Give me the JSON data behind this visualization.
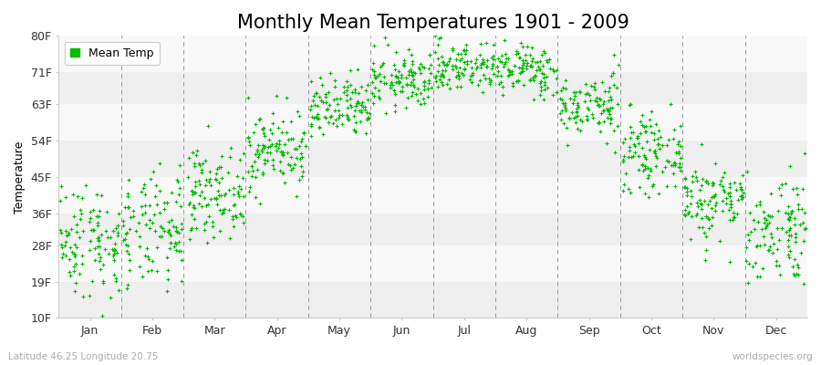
{
  "title": "Monthly Mean Temperatures 1901 - 2009",
  "ylabel": "Temperature",
  "xlabel_labels": [
    "Jan",
    "Feb",
    "Mar",
    "Apr",
    "May",
    "Jun",
    "Jul",
    "Aug",
    "Sep",
    "Oct",
    "Nov",
    "Dec"
  ],
  "ytick_labels": [
    "10F",
    "19F",
    "28F",
    "36F",
    "45F",
    "54F",
    "63F",
    "71F",
    "80F"
  ],
  "ytick_values": [
    10,
    19,
    28,
    36,
    45,
    54,
    63,
    71,
    80
  ],
  "ylim": [
    10,
    80
  ],
  "xlim": [
    0,
    12
  ],
  "dot_color": "#00bb00",
  "legend_label": "Mean Temp",
  "subtitle_left": "Latitude 46.25 Longitude 20.75",
  "subtitle_right": "worldspecies.org",
  "background_color": "#ffffff",
  "plot_bg_color": "#ffffff",
  "band_colors": [
    "#efefef",
    "#f8f8f8"
  ],
  "title_fontsize": 15,
  "axis_fontsize": 9,
  "dot_size": 6,
  "monthly_means_C": [
    -1.5,
    -0.5,
    5.0,
    11.0,
    16.5,
    20.5,
    22.5,
    22.0,
    17.0,
    10.5,
    4.0,
    0.0
  ],
  "monthly_stds_C": [
    4.0,
    4.0,
    3.0,
    2.8,
    2.2,
    2.0,
    1.8,
    1.8,
    2.2,
    2.5,
    2.8,
    4.0
  ],
  "n_years": 109,
  "seed": 42
}
